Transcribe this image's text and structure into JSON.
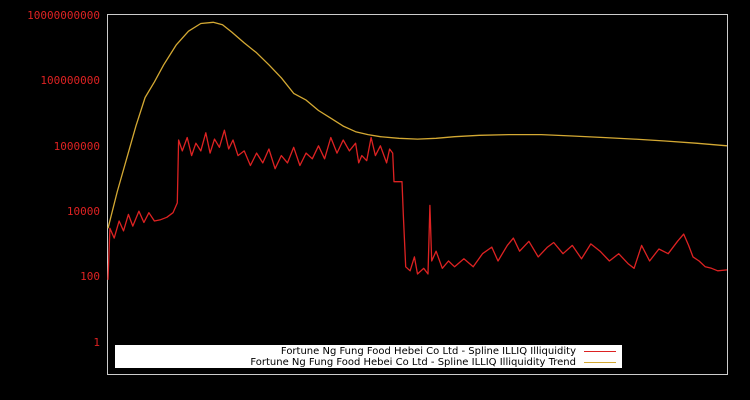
{
  "chart_data": {
    "type": "line",
    "title": "",
    "xlabel": "",
    "ylabel": "",
    "yscale": "log",
    "ylim": [
      0.3,
      10000000000
    ],
    "y_ticks": [
      {
        "label": "10000000000",
        "value": 10000000000
      },
      {
        "label": "100000000",
        "value": 100000000
      },
      {
        "label": "1000000",
        "value": 1000000
      },
      {
        "label": "10000",
        "value": 10000
      },
      {
        "label": "100",
        "value": 100
      },
      {
        "label": "1",
        "value": 1
      }
    ],
    "grid": false,
    "legend_position": "bottom-inside",
    "x_note": "x values are fraction of the horizontal plot extent (no x tick labels shown)",
    "series": [
      {
        "name": "Fortune Ng Fung Food Hebei Co Ltd - Spline ILLIQ Illiquidity",
        "color": "#dd2222",
        "points": [
          [
            0.0,
            80
          ],
          [
            0.003,
            3000
          ],
          [
            0.01,
            1500
          ],
          [
            0.018,
            5000
          ],
          [
            0.025,
            2500
          ],
          [
            0.033,
            8000
          ],
          [
            0.04,
            3500
          ],
          [
            0.05,
            10000
          ],
          [
            0.058,
            4500
          ],
          [
            0.066,
            9000
          ],
          [
            0.075,
            5000
          ],
          [
            0.085,
            5500
          ],
          [
            0.095,
            6500
          ],
          [
            0.105,
            9000
          ],
          [
            0.112,
            18000
          ],
          [
            0.114,
            1500000
          ],
          [
            0.12,
            700000
          ],
          [
            0.128,
            1800000
          ],
          [
            0.135,
            500000
          ],
          [
            0.142,
            1200000
          ],
          [
            0.15,
            700000
          ],
          [
            0.158,
            2500000
          ],
          [
            0.165,
            600000
          ],
          [
            0.172,
            1600000
          ],
          [
            0.18,
            900000
          ],
          [
            0.188,
            3000000
          ],
          [
            0.195,
            800000
          ],
          [
            0.202,
            1500000
          ],
          [
            0.21,
            500000
          ],
          [
            0.22,
            700000
          ],
          [
            0.23,
            250000
          ],
          [
            0.24,
            600000
          ],
          [
            0.25,
            300000
          ],
          [
            0.26,
            800000
          ],
          [
            0.27,
            200000
          ],
          [
            0.28,
            500000
          ],
          [
            0.29,
            300000
          ],
          [
            0.3,
            900000
          ],
          [
            0.31,
            250000
          ],
          [
            0.32,
            600000
          ],
          [
            0.33,
            400000
          ],
          [
            0.34,
            1000000
          ],
          [
            0.35,
            400000
          ],
          [
            0.36,
            1800000
          ],
          [
            0.37,
            600000
          ],
          [
            0.38,
            1500000
          ],
          [
            0.39,
            700000
          ],
          [
            0.4,
            1200000
          ],
          [
            0.405,
            300000
          ],
          [
            0.41,
            500000
          ],
          [
            0.418,
            350000
          ],
          [
            0.425,
            1800000
          ],
          [
            0.432,
            500000
          ],
          [
            0.44,
            1000000
          ],
          [
            0.45,
            300000
          ],
          [
            0.455,
            800000
          ],
          [
            0.46,
            600000
          ],
          [
            0.462,
            80000
          ],
          [
            0.475,
            80000
          ],
          [
            0.477,
            8000
          ],
          [
            0.481,
            200
          ],
          [
            0.488,
            150
          ],
          [
            0.495,
            400
          ],
          [
            0.5,
            120
          ],
          [
            0.51,
            180
          ],
          [
            0.517,
            120
          ],
          [
            0.52,
            15000
          ],
          [
            0.523,
            300
          ],
          [
            0.53,
            600
          ],
          [
            0.54,
            180
          ],
          [
            0.55,
            300
          ],
          [
            0.56,
            200
          ],
          [
            0.575,
            350
          ],
          [
            0.59,
            200
          ],
          [
            0.605,
            500
          ],
          [
            0.62,
            800
          ],
          [
            0.63,
            300
          ],
          [
            0.645,
            900
          ],
          [
            0.655,
            1500
          ],
          [
            0.665,
            600
          ],
          [
            0.68,
            1200
          ],
          [
            0.695,
            400
          ],
          [
            0.71,
            800
          ],
          [
            0.72,
            1100
          ],
          [
            0.735,
            500
          ],
          [
            0.75,
            900
          ],
          [
            0.765,
            350
          ],
          [
            0.78,
            1000
          ],
          [
            0.795,
            600
          ],
          [
            0.81,
            300
          ],
          [
            0.825,
            500
          ],
          [
            0.84,
            250
          ],
          [
            0.85,
            180
          ],
          [
            0.862,
            900
          ],
          [
            0.875,
            300
          ],
          [
            0.89,
            700
          ],
          [
            0.905,
            500
          ],
          [
            0.92,
            1200
          ],
          [
            0.93,
            2000
          ],
          [
            0.938,
            900
          ],
          [
            0.945,
            400
          ],
          [
            0.955,
            300
          ],
          [
            0.965,
            200
          ],
          [
            0.975,
            180
          ],
          [
            0.985,
            150
          ],
          [
            1.0,
            160
          ]
        ]
      },
      {
        "name": "Fortune Ng Fung Food Hebei Co Ltd - Spline ILLIQ Illiquidity Trend",
        "color": "#d4a933",
        "points": [
          [
            0.0,
            3000
          ],
          [
            0.015,
            40000
          ],
          [
            0.03,
            400000
          ],
          [
            0.045,
            4000000
          ],
          [
            0.06,
            30000000
          ],
          [
            0.075,
            90000000
          ],
          [
            0.09,
            300000000
          ],
          [
            0.11,
            1200000000
          ],
          [
            0.13,
            3200000000
          ],
          [
            0.15,
            5500000000
          ],
          [
            0.17,
            6000000000
          ],
          [
            0.185,
            5000000000
          ],
          [
            0.2,
            3000000000
          ],
          [
            0.22,
            1400000000
          ],
          [
            0.24,
            700000000
          ],
          [
            0.26,
            300000000
          ],
          [
            0.28,
            120000000
          ],
          [
            0.3,
            40000000
          ],
          [
            0.32,
            25000000
          ],
          [
            0.34,
            12000000
          ],
          [
            0.36,
            7000000
          ],
          [
            0.38,
            4000000
          ],
          [
            0.4,
            2700000
          ],
          [
            0.42,
            2200000
          ],
          [
            0.44,
            1900000
          ],
          [
            0.47,
            1700000
          ],
          [
            0.5,
            1600000
          ],
          [
            0.53,
            1700000
          ],
          [
            0.56,
            1900000
          ],
          [
            0.6,
            2100000
          ],
          [
            0.65,
            2200000
          ],
          [
            0.7,
            2200000
          ],
          [
            0.75,
            2000000
          ],
          [
            0.8,
            1800000
          ],
          [
            0.85,
            1600000
          ],
          [
            0.9,
            1400000
          ],
          [
            0.95,
            1200000
          ],
          [
            1.0,
            1000000
          ]
        ]
      }
    ]
  },
  "legend": {
    "entries": [
      {
        "label": "Fortune Ng Fung Food Hebei Co Ltd - Spline ILLIQ Illiquidity",
        "color": "#dd2222"
      },
      {
        "label": "Fortune Ng Fung Food Hebei Co Ltd - Spline ILLIQ Illiquidity Trend",
        "color": "#d4a933"
      }
    ]
  },
  "style": {
    "background": "#000000",
    "frame_color": "#cccccc",
    "tick_label_color": "#dd2222"
  }
}
